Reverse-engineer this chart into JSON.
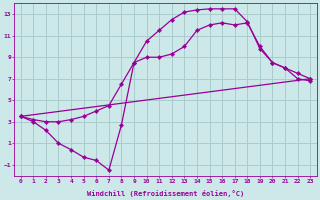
{
  "xlabel": "Windchill (Refroidissement éolien,°C)",
  "bg_color": "#cce8e8",
  "grid_color": "#aacccc",
  "line_color": "#990099",
  "xlim": [
    -0.5,
    23.5
  ],
  "ylim": [
    -2.0,
    14.0
  ],
  "xticks": [
    0,
    1,
    2,
    3,
    4,
    5,
    6,
    7,
    8,
    9,
    10,
    11,
    12,
    13,
    14,
    15,
    16,
    17,
    18,
    19,
    20,
    21,
    22,
    23
  ],
  "yticks": [
    -1,
    1,
    3,
    5,
    7,
    9,
    11,
    13
  ],
  "line1_x": [
    0,
    1,
    2,
    3,
    4,
    5,
    6,
    7,
    8,
    9,
    10,
    11,
    12,
    13,
    14,
    15,
    16,
    17,
    18,
    19,
    20,
    21,
    22,
    23
  ],
  "line1_y": [
    3.5,
    3.0,
    2.2,
    1.0,
    0.4,
    -0.3,
    -0.6,
    -1.5,
    2.7,
    8.5,
    10.5,
    11.5,
    12.5,
    13.2,
    13.4,
    13.5,
    13.5,
    13.5,
    12.3,
    9.8,
    8.5,
    8.0,
    7.0,
    6.8
  ],
  "line2_x": [
    0,
    1,
    2,
    3,
    4,
    5,
    6,
    7,
    8,
    9,
    10,
    11,
    12,
    13,
    14,
    15,
    16,
    17,
    18,
    19,
    20,
    21,
    22,
    23
  ],
  "line2_y": [
    3.5,
    3.2,
    3.0,
    3.0,
    3.2,
    3.5,
    4.0,
    4.5,
    6.5,
    8.5,
    9.0,
    9.0,
    9.3,
    10.0,
    11.5,
    12.0,
    12.2,
    12.0,
    12.2,
    10.0,
    8.5,
    8.0,
    7.5,
    7.0
  ],
  "line3_x": [
    0,
    23
  ],
  "line3_y": [
    3.5,
    7.0
  ]
}
